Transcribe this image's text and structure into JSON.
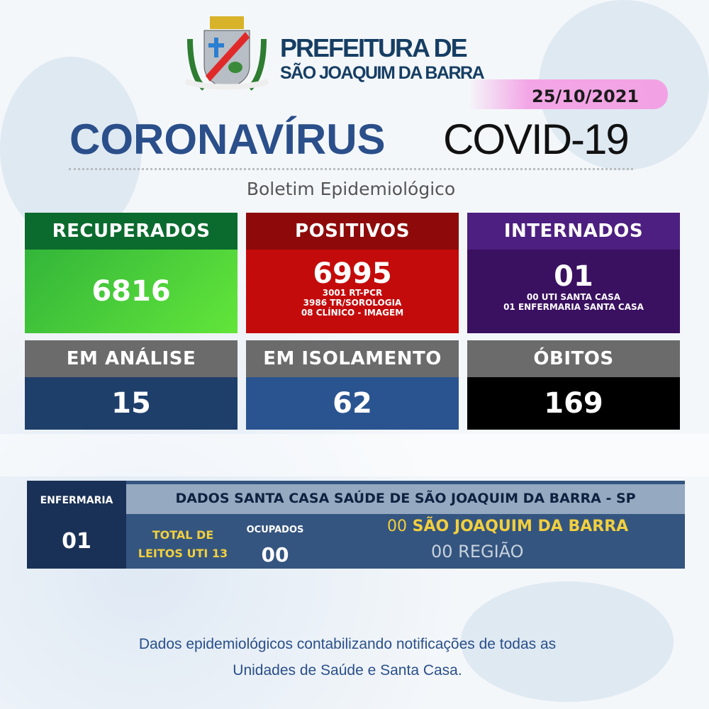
{
  "header": {
    "org_line1": "PREFEITURA DE",
    "org_line2": "SÃO JOAQUIM DA BARRA",
    "date": "25/10/2021",
    "title_main": "CORONAVÍRUS",
    "title_sub": "COVID-19",
    "subtitle": "Boletim Epidemiológico",
    "logo": "coat-of-arms-sao-joaquim-da-barra"
  },
  "cards": [
    {
      "label": "RECUPERADOS",
      "value": "6816",
      "details": [],
      "header_color": "#0b6b2e",
      "body_color": "#45cf3c"
    },
    {
      "label": "POSITIVOS",
      "value": "6995",
      "details": [
        "3001 RT-PCR",
        "3986 TR/SOROLOGIA",
        "08 CLÍNICO - IMAGEM"
      ],
      "header_color": "#8e0a0a",
      "body_color": "#c40b0b"
    },
    {
      "label": "INTERNADOS",
      "value": "01",
      "details": [
        "00 UTI SANTA CASA",
        "01 ENFERMARIA SANTA CASA"
      ],
      "header_color": "#4d1f80",
      "body_color": "#3a1060"
    },
    {
      "label": "EM ANÁLISE",
      "value": "15",
      "header_color": "#6b6b6b",
      "body_color": "#1f3f6b"
    },
    {
      "label": "EM ISOLAMENTO",
      "value": "62",
      "header_color": "#6b6b6b",
      "body_color": "#2a5490"
    },
    {
      "label": "ÓBITOS",
      "value": "169",
      "header_color": "#6b6b6b",
      "body_color": "#000000"
    }
  ],
  "santa_casa": {
    "enfermaria_label": "ENFERMARIA",
    "enfermaria_value": "01",
    "title": "DADOS SANTA CASA SAÚDE DE SÃO JOAQUIM DA BARRA - SP",
    "total_label_1": "TOTAL DE",
    "total_label_2": "LEITOS UTI 13",
    "ocupados_label": "OCUPADOS",
    "ocupados_value": "00",
    "sjb_count": "00",
    "sjb_label": "SÃO JOAQUIM DA BARRA",
    "regiao": "00 REGIÃO"
  },
  "footer": {
    "line1": "Dados epidemiológicos contabilizando notificações de todas as",
    "line2": "Unidades de Saúde e Santa Casa."
  }
}
